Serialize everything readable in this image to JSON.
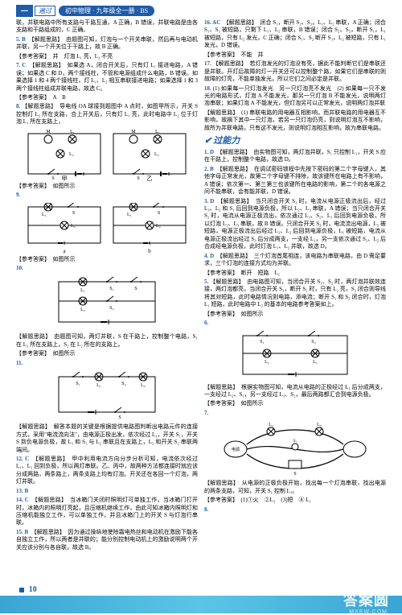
{
  "header": {
    "brand": "一",
    "brand2": "遍过",
    "subtitle": "初中物理 · 九年级全一册 · BS"
  },
  "page_number": "10",
  "watermark": "答案圆",
  "watermark_sub": "MXEW.COM",
  "left": [
    {
      "t": "txt",
      "v": "联，并联电路中所有支路与干路互通，A 正确，B 错误，并联电路是由各支路和干路组成的，C 正确。"
    },
    {
      "t": "numans",
      "n": "5.",
      "a": "B",
      "v": "【解题思路】　由题图可知，灯泡与一个开关串联，然后再与电动机并联，另一个开关位于干路上，故 B 正确。"
    },
    {
      "t": "ans",
      "v": "【参考答案】　并　灯泡 L₁ 亮，L₂ 不亮"
    },
    {
      "t": "numans",
      "n": "7.",
      "a": "C",
      "v": "【解题思路】　如果选 A，闭合开关后，只有灯 L₁ 接进电路，A 错误；如果选 C 和 D，两个接线柱，不管和电源组成什么电路，B 错误。如果选择 1 和 4 两个接线柱，灯 L₁、L₂ 相互串联接进电路；如果选择 1 和 3 两个接线柱组成并联电路，故选 C。"
    },
    {
      "t": "ans",
      "v": "【参考答案】　A　B"
    },
    {
      "t": "nump",
      "n": "8.",
      "v": "【解题思路】　导电线 OA 球接到题图中 A 点时，如图甲所示，开关 S 控制灯 L₂ 所在支路，合上开关后，只有灯 L₁ 亮，此时电路中 L₂ 位于灯泡 L₁ 所在支路上，"
    },
    {
      "t": "diag",
      "d": "two_circuits_ML"
    },
    {
      "t": "ans",
      "v": "【参考答案】　如图所示"
    },
    {
      "t": "nump",
      "n": "9.",
      "v": ""
    },
    {
      "t": "diag",
      "d": "two_circuits_L1L2"
    },
    {
      "t": "ans",
      "v": "【参考答案】　如图所示"
    },
    {
      "t": "nump",
      "n": "10.",
      "v": ""
    },
    {
      "t": "diag",
      "d": "one_circuit_parallel"
    },
    {
      "t": "txt",
      "v": "【解题思路】　由题图可知，两灯并联，S 在干路上，控制整个电路，S₁ 在 L₁ 所在支路上，S₂ 在 L₂ 所在的支路上。"
    },
    {
      "t": "ans",
      "v": "【参考答案】　如图所示"
    },
    {
      "t": "nump",
      "n": "11.",
      "v": ""
    },
    {
      "t": "diag",
      "d": "one_circuit_series"
    },
    {
      "t": "txt",
      "v": "【解题思路】　解答本题的关键是根据提供电路图判断出电路元件的连接方式，采用\"电流流向法\"，由电源正极出发，依次经过 L₁，开关 S₁，开关 S 到负电源负极，故 L₁ 和 S₁ 与 L₂ 串联且在支路上，L₂ 和开关 S₂ 串联两端间。"
    },
    {
      "t": "numans",
      "n": "12.",
      "a": "C",
      "v": "【解题思路】　甲中利用电流方向分步分析可知，电流依次经过 L₁、L₂ 回到负极，所以两灯串联。乙、丙中，故两种方法都连接时就应该分成两路，两条路上，两条支路上均有灯泡。开关还在各回一个灯泡，两灯并联。"
    },
    {
      "t": "numans",
      "n": "13.",
      "a": "B",
      "v": ""
    },
    {
      "t": "numans",
      "n": "14.",
      "a": "C",
      "v": "【解题思路】　当冰箱门关闭时照明灯可单独工作，当冰箱门打开时，冰箱内的照明灯亮起，且压缩机继续工作，由此可知冰箱内照明灯和压缩机能独立工作，可以单独工作，并且冰箱门上的开关 S 与灯泡行串联。"
    },
    {
      "t": "numans",
      "n": "15.",
      "a": "B",
      "v": "【解题思路】　因为通过操纵地使除霜电热丝和电动机在激励下能各自独立工作，所以两者是并联的；能分别控制电动机上的激励说明两个开关应该分别与各自联，故选 B。"
    }
  ],
  "right": [
    {
      "t": "numans",
      "n": "16.",
      "a": "AC",
      "v": "【解题思路】　闭合 S₁，断开 S₂、S₃，L₁、L₂ 串联，A 正确；闭合 S₁、S₃ 被短路，只剩下 L₁、L₂ 串联，B 错误；闭合 S₂、S₃，断开 S₁，L₁ 被短路，只有 L₂ 发光，C 正确；闭合 S₁、S₂ 断开 S₃，L₂ 被短路，只有 L₁ 发光，D 错误。"
    },
    {
      "t": "ans",
      "v": "【参考答案】　不能　并"
    },
    {
      "t": "nump",
      "n": "17.",
      "v": "【解题思路】　若灯泡发光的灯泡没有亮，据此不能判断它们是串联还是并联。开灯后故障的灯一开关还可以控制整个路，如果它们是串联的则故障的灯亮，不能单独发光，所以它们之间必定是并联。"
    },
    {
      "t": "nump",
      "n": "18.",
      "v": "(1) 如果每一只灯泡发光　另一只灯泡亮不发光　(2) 如果每一只不发光的电路形式，灯泡 A 不能发光，那另一只灯泡 B 不能发光，说明两灯泡串联；如果灯泡 A 不能发光，但灯泡另可以正常发光，说明两灯泡并联"
    },
    {
      "t": "txt",
      "v": "【解题思路】　(1) 串联电路的用电器互相影响，而并联电路的用电器互不影响，故摘下其中一只灯泡，若另一只灯泡仍亮，则说明灯泡互不影响，故所为并联电路，只有这不发光，则说明灯泡相互影响，故为串联电路。"
    },
    {
      "t": "section",
      "v": "过能力"
    },
    {
      "t": "numans",
      "n": "1.",
      "a": "D",
      "v": "【解题思路】　由实物图可知，两灯泡并联，S₁ 只控制 L₁，开关 S 应在干路上，控制整个电路，故选 D。"
    },
    {
      "t": "numans",
      "n": "2.",
      "a": "B",
      "v": "【解题思路】　在调试密码锁程中先按下密码的第二个字母键入，其他字母正常发光，故第二个字母键不排除，故该键所在电路上有不影响，A 错误；依次第一、第三第三也该键所在电路的影响，第二个的各电源之间不能串联，会有能并联，D 错误。"
    },
    {
      "t": "numans",
      "n": "3.",
      "a": "D",
      "v": "【解题思路】　当只闭合开关 S₁ 时，电流从电源正极流出后，经过 L₃、L₂ 和 S₁ 后回到电源负极，所以 L₂、L₃ 串联，A 错误；当只闭合开关 S₂ 时，电流从电源正极流出，依次通过 L₃、S₂、L₁ 后回到电源负极，所以灯泡 L₁、L₃ 串联，故 B 错误。只闭合开关 S₃ 时，电流流出电源，L₃ 被短路，电源正极流出后经过 L₁、L₂ 后回到电源负极，L₁ 被短路，电流从电源正极流出经过 S₃ 后分成两支，一支经 L₁，另一支依次通过 S₂、L₂ 后合成经电源负极，此时灯泡 L₁、L₂ 并联，故选 D。"
    },
    {
      "t": "numans",
      "n": "4.",
      "a": "D",
      "v": "【解题思路】　三个灯泡首尾相连，该电路为串联电路，由 D 需足要求，三个灯泡的连接方式均为并联。"
    },
    {
      "t": "ans",
      "v": "【参考答案】　断开　短路　L₁"
    },
    {
      "t": "nump",
      "n": "5.",
      "v": "【解题思路】　由电路图可知，当闭合开关 S₁、S₂ 时，两灯泡并联效连接，两灯泡都亮，当闭合开关 S₁，断开 S₂ 时，只有 L₂ 亮，S₂ 闭合则导线将其对短路，此时电路情况则电路，添电流；断开 S₁ 和 S₂ 闭合时，灯泡 L₁ 短路，此时电路中 L₂ 的基本的电路参考答案如上。"
    },
    {
      "t": "ans",
      "v": "【参考答案】　如图所示"
    },
    {
      "t": "nump",
      "n": "6.",
      "v": ""
    },
    {
      "t": "diag",
      "d": "parallel_s1s2"
    },
    {
      "t": "txt",
      "v": "【解题思路】　根据实物图可知，电流从电路的正极经过 L₁ 后分成两支，一支经过 L₂、S₁，另一支经过 L₃、S₂，最后两路都汇合到电源负极。"
    },
    {
      "t": "ans",
      "v": "【参考答案】　如图所示"
    },
    {
      "t": "nump",
      "n": "7.",
      "v": ""
    },
    {
      "t": "diag",
      "d": "complex_wiring"
    },
    {
      "t": "txt",
      "v": "【解题思路】　从电源的正极负极开始，找出每一个灯泡串联，找出电源的两条支路，可知，开关 S₁ 控制 L₁。"
    },
    {
      "t": "ans",
      "v": "【参考答案】　(1)①火　②L₂　(3)短　④ L₁"
    },
    {
      "t": "nump",
      "n": "8.",
      "v": ""
    }
  ]
}
